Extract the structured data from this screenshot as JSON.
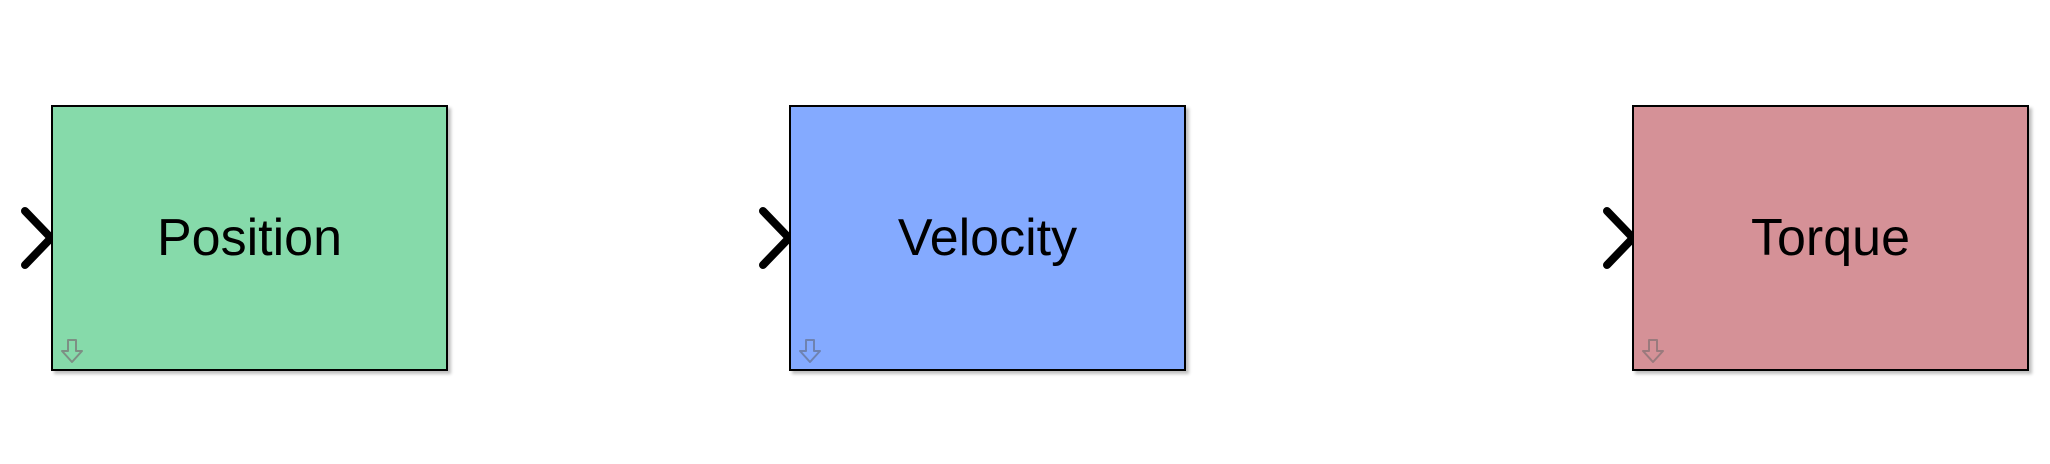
{
  "blocks": [
    {
      "id": "position",
      "label": "Position",
      "fill": "#86DAAA",
      "icon_color": "#7D8F84",
      "icon": "down-arrow-icon"
    },
    {
      "id": "velocity",
      "label": "Velocity",
      "fill": "#84AAFF",
      "icon_color": "#6E82B0",
      "icon": "down-arrow-icon"
    },
    {
      "id": "torque",
      "label": "Torque",
      "fill": "#D59197",
      "icon_color": "#9A7A7D",
      "icon": "down-arrow-icon"
    }
  ],
  "port_icon": "chevron-right-icon",
  "stroke_color": "#000000"
}
